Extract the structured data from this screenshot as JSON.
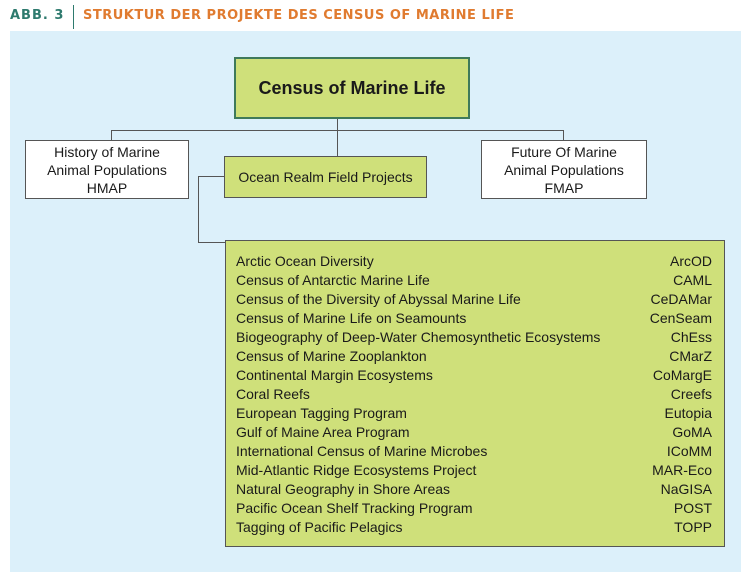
{
  "header": {
    "label": "ABB. 3",
    "title": "STRUKTUR DER PROJEKTE DES CENSUS OF MARINE LIFE"
  },
  "colors": {
    "accent_green": "#cfe07a",
    "panel_bg": "#dcf0fa",
    "title_orange": "#e07b30",
    "label_teal": "#2e7a6e"
  },
  "diagram": {
    "root": "Census of Marine Life",
    "hmap": [
      "History of Marine",
      "Animal Populations",
      "HMAP"
    ],
    "fmap": [
      "Future Of Marine",
      "Animal Populations",
      "FMAP"
    ],
    "ocean": "Ocean Realm Field Projects",
    "projects": [
      {
        "name": "Arctic Ocean Diversity",
        "code": "ArcOD"
      },
      {
        "name": "Census of Antarctic Marine Life",
        "code": "CAML"
      },
      {
        "name": "Census of the Diversity of Abyssal Marine Life",
        "code": "CeDAMar"
      },
      {
        "name": "Census of Marine Life on Seamounts",
        "code": "CenSeam"
      },
      {
        "name": "Biogeography of Deep-Water Chemosynthetic Ecosystems",
        "code": "ChEss"
      },
      {
        "name": "Census of Marine Zooplankton",
        "code": "CMarZ"
      },
      {
        "name": "Continental Margin Ecosystems",
        "code": "CoMargE"
      },
      {
        "name": "Coral Reefs",
        "code": "Creefs"
      },
      {
        "name": "European Tagging Program",
        "code": "Eutopia"
      },
      {
        "name": "Gulf of Maine Area Program",
        "code": "GoMA"
      },
      {
        "name": "International Census of Marine Microbes",
        "code": "ICoMM"
      },
      {
        "name": "Mid-Atlantic Ridge Ecosystems Project",
        "code": "MAR-Eco"
      },
      {
        "name": "Natural Geography in Shore Areas",
        "code": "NaGISA"
      },
      {
        "name": "Pacific Ocean Shelf Tracking Program",
        "code": "POST"
      },
      {
        "name": "Tagging of Pacific Pelagics",
        "code": "TOPP"
      }
    ]
  }
}
